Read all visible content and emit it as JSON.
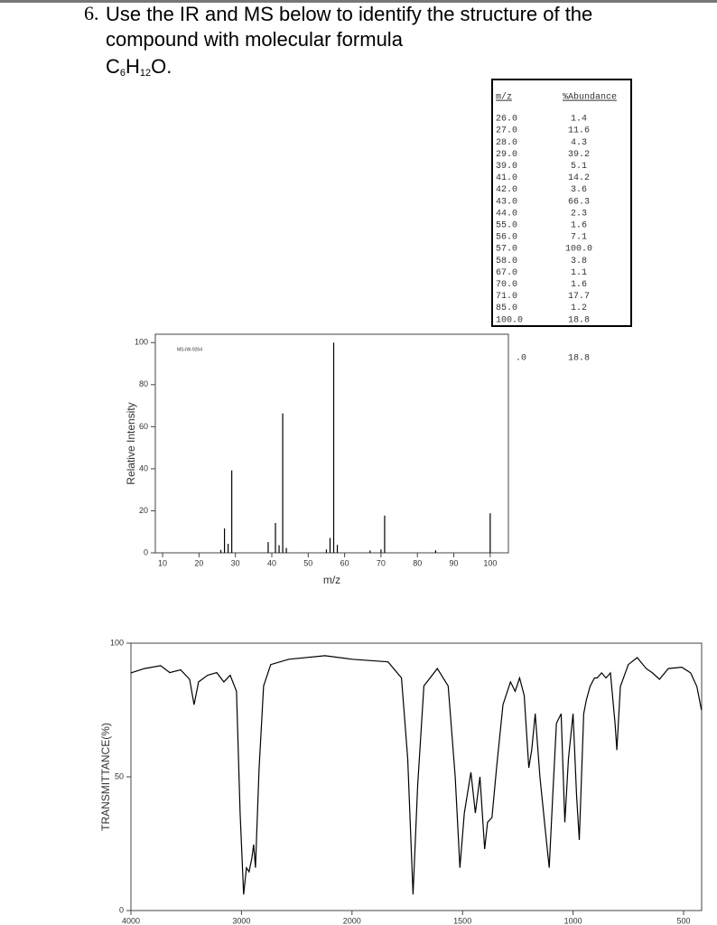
{
  "question": {
    "number": "6.",
    "line1": "Use the IR and MS below to identify the structure of the",
    "line2": "compound with molecular formula",
    "formula": [
      "C",
      "6",
      "H",
      "12",
      "O."
    ]
  },
  "table": {
    "headers": [
      "m/z",
      "%Abundance"
    ],
    "rows": [
      [
        "26.0",
        "1.4"
      ],
      [
        "27.0",
        "11.6"
      ],
      [
        "28.0",
        "4.3"
      ],
      [
        "29.0",
        "39.2"
      ],
      [
        "39.0",
        "5.1"
      ],
      [
        "41.0",
        "14.2"
      ],
      [
        "42.0",
        "3.6"
      ],
      [
        "43.0",
        "66.3"
      ],
      [
        "44.0",
        "2.3"
      ],
      [
        "55.0",
        "1.6"
      ],
      [
        "56.0",
        "7.1"
      ],
      [
        "57.0",
        "100.0"
      ],
      [
        "58.0",
        "3.8"
      ],
      [
        "67.0",
        "1.1"
      ],
      [
        "70.0",
        "1.6"
      ],
      [
        "71.0",
        "17.7"
      ],
      [
        "85.0",
        "1.2"
      ],
      [
        "100.0",
        "18.8"
      ]
    ],
    "cut_row": [
      ".0",
      "18.8"
    ]
  },
  "chart_data": [
    {
      "type": "bar",
      "label": "MS-IW-9264",
      "x_label": "m/z",
      "y_label": "Relative Intensity",
      "color": "#000000",
      "x": [
        26,
        27,
        28,
        29,
        39,
        41,
        42,
        43,
        44,
        55,
        56,
        57,
        58,
        67,
        70,
        71,
        85,
        100
      ],
      "values": [
        1.4,
        11.6,
        4.3,
        39.2,
        5.1,
        14.2,
        3.6,
        66.3,
        2.3,
        1.6,
        7.1,
        100.0,
        3.8,
        1.1,
        1.6,
        17.7,
        1.2,
        18.8
      ],
      "xlim": [
        8,
        105
      ],
      "ylim": [
        0,
        104
      ],
      "xticks": [
        10,
        20,
        30,
        40,
        50,
        60,
        70,
        80,
        90,
        100
      ],
      "yticks": [
        0,
        20,
        40,
        60,
        80,
        100
      ]
    },
    {
      "type": "line",
      "y_label": "TRANSMITTANCE(%)",
      "color": "#000000",
      "x": [
        4000,
        3878,
        3731,
        3649,
        3551,
        3469,
        3429,
        3388,
        3306,
        3224,
        3159,
        3102,
        3045,
        3012,
        2980,
        2955,
        2931,
        2906,
        2890,
        2873,
        2841,
        2800,
        2735,
        2571,
        2245,
        2000,
        1837,
        1776,
        1748,
        1724,
        1703,
        1675,
        1614,
        1565,
        1533,
        1512,
        1492,
        1462,
        1442,
        1421,
        1400,
        1387,
        1367,
        1346,
        1317,
        1283,
        1262,
        1242,
        1221,
        1200,
        1187,
        1171,
        1150,
        1125,
        1108,
        1092,
        1075,
        1054,
        1037,
        1021,
        1000,
        984,
        972,
        952,
        940,
        923,
        903,
        891,
        871,
        851,
        831,
        810,
        802,
        786,
        750,
        710,
        669,
        641,
        609,
        569,
        508,
        468,
        440,
        419
      ],
      "values": [
        88.9,
        90.5,
        91.6,
        89,
        90,
        86.5,
        77,
        85.5,
        88,
        89,
        85.5,
        88,
        82,
        36.5,
        6,
        16,
        14.5,
        19.6,
        24.7,
        16,
        53,
        84,
        92,
        94,
        95.3,
        94,
        93,
        87,
        56.8,
        6,
        46.6,
        84,
        90.5,
        84,
        50,
        16,
        36.5,
        51.7,
        36.5,
        50,
        23,
        33,
        34.8,
        53.4,
        77,
        85.5,
        82,
        87,
        80.4,
        53.4,
        60,
        73.6,
        50,
        29.7,
        16,
        43,
        70,
        73.6,
        33,
        56.8,
        73.6,
        43,
        26.4,
        73.6,
        78.7,
        83.8,
        87,
        87,
        88.9,
        87,
        88.9,
        70,
        60,
        83.8,
        92,
        94.6,
        90.5,
        88.9,
        86.5,
        90.5,
        91,
        88.9,
        83.8,
        75
      ],
      "xlim": [
        4000,
        420
      ],
      "ylim": [
        0,
        100
      ],
      "xticks": [
        4000,
        3000,
        2000,
        1500,
        1000,
        500
      ],
      "yticks": [
        0,
        50,
        100
      ]
    }
  ]
}
